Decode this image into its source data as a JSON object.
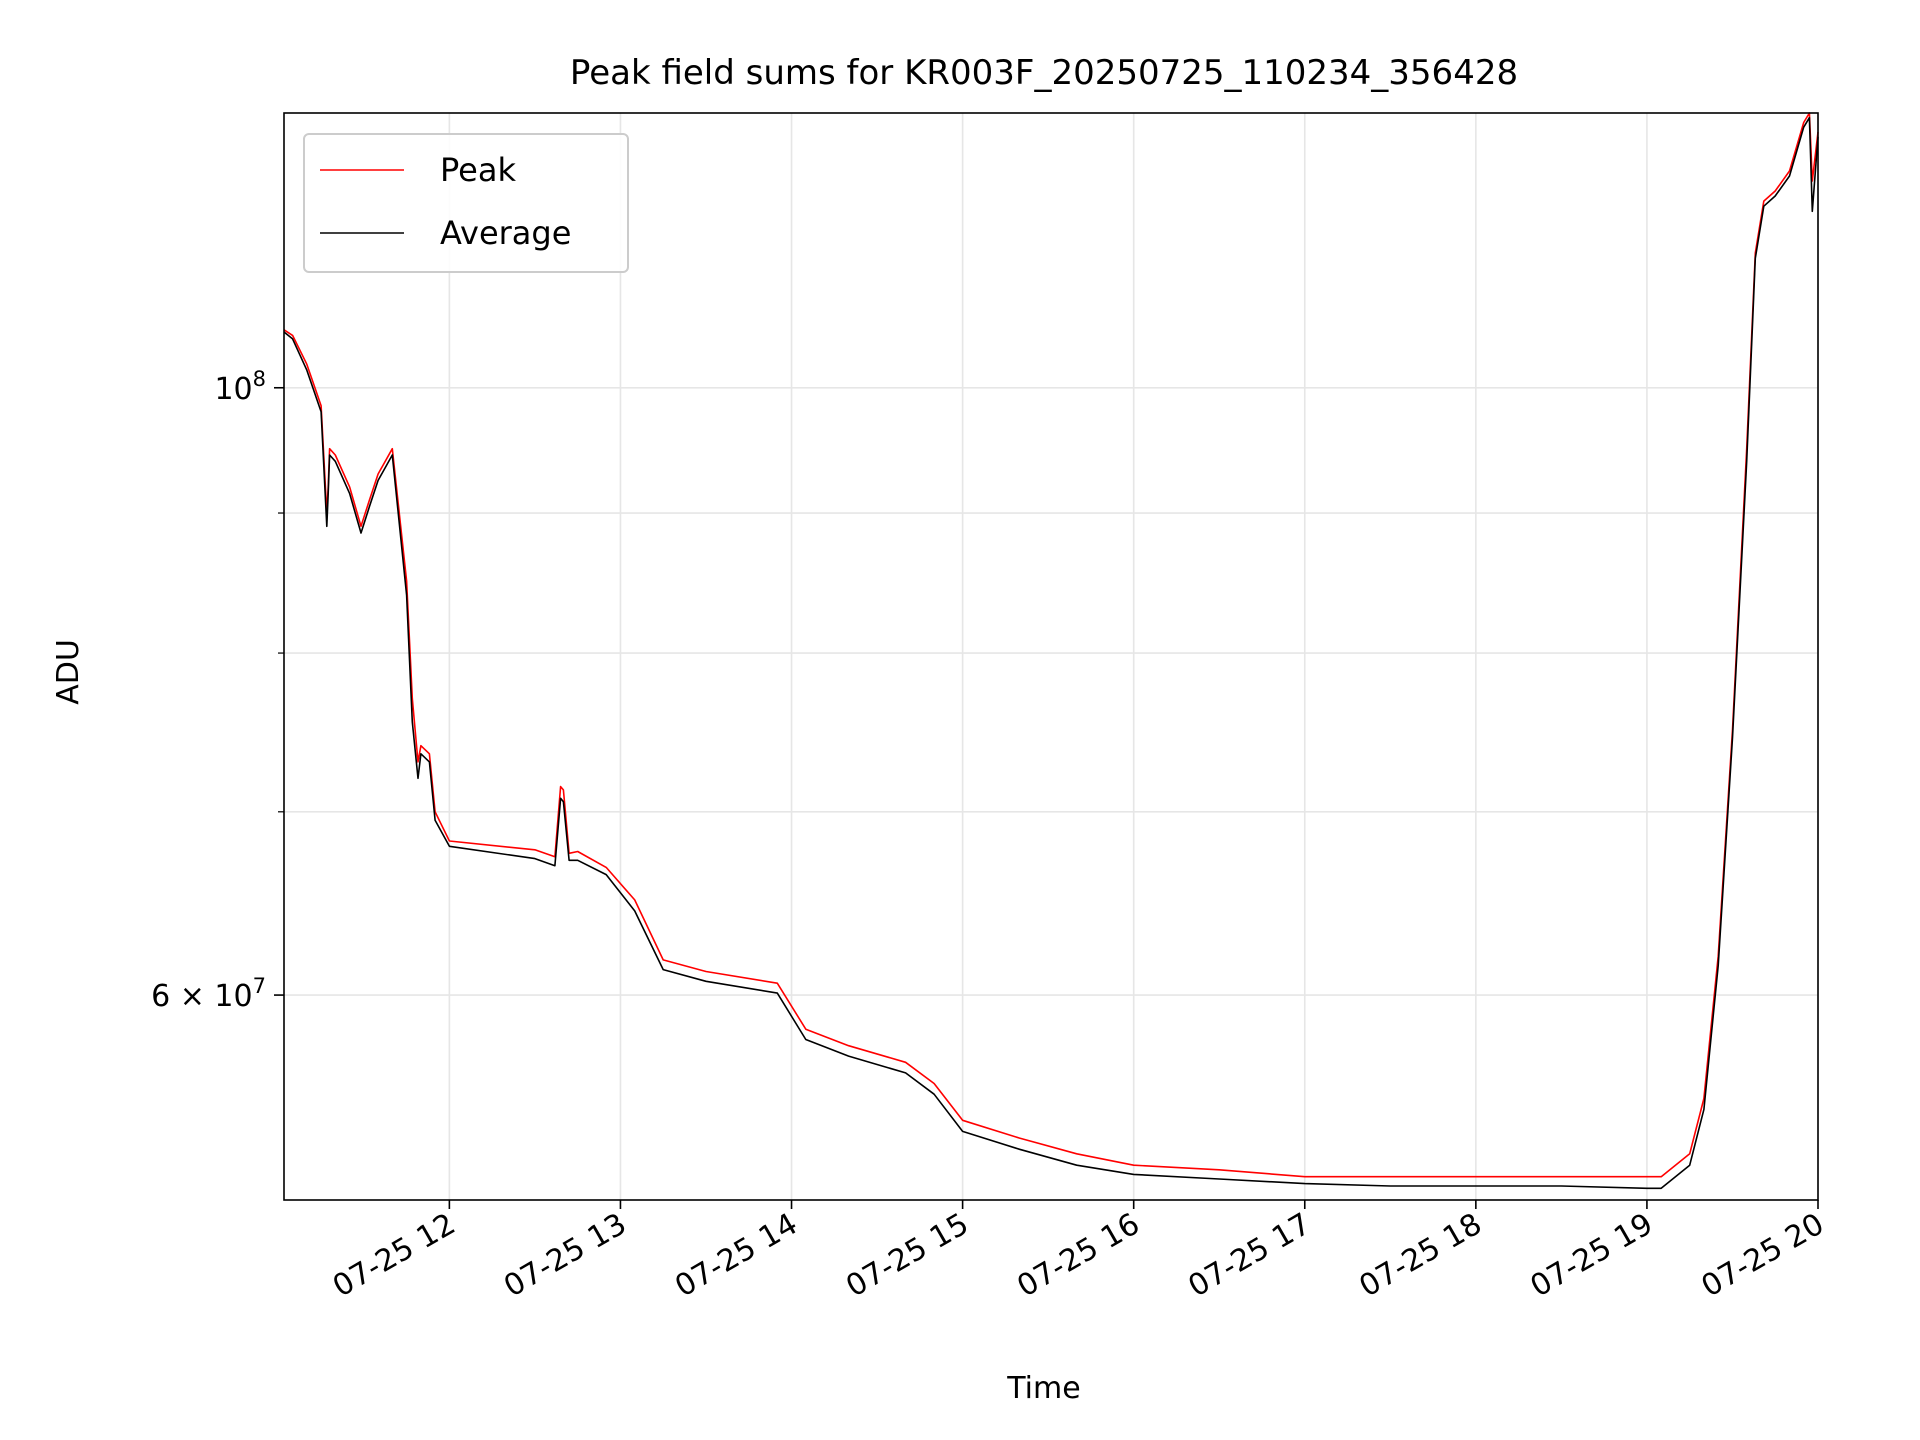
{
  "chart_data": {
    "type": "line",
    "title": "Peak field sums for KR003F_20250725_110234_356428",
    "xlabel": "Time",
    "ylabel": "ADU",
    "xlim": [
      "2025-07-25 11:02",
      "2025-07-25 20:00"
    ],
    "ylim": [
      50500000,
      126000000
    ],
    "yscale": "log",
    "grid": true,
    "legend": "top-left",
    "x_ticks": [
      "07-25 12",
      "07-25 13",
      "07-25 14",
      "07-25 15",
      "07-25 16",
      "07-25 17",
      "07-25 18",
      "07-25 19",
      "07-25 20"
    ],
    "y_major_ticks": [
      {
        "value": 100000000,
        "base": "10",
        "exp": "8",
        "coef": ""
      },
      {
        "value": 60000000,
        "base": "10",
        "exp": "7",
        "coef": "6"
      }
    ],
    "y_minor_ticks": [
      70000000,
      80000000,
      90000000
    ],
    "series": [
      {
        "name": "Peak",
        "color": "#ff0000",
        "x": [
          "2025-07-25 11:02",
          "2025-07-25 11:05",
          "2025-07-25 11:10",
          "2025-07-25 11:15",
          "2025-07-25 11:17",
          "2025-07-25 11:17:30",
          "2025-07-25 11:18",
          "2025-07-25 11:20",
          "2025-07-25 11:25",
          "2025-07-25 11:29",
          "2025-07-25 11:32",
          "2025-07-25 11:35",
          "2025-07-25 11:40",
          "2025-07-25 11:45",
          "2025-07-25 11:47",
          "2025-07-25 11:49",
          "2025-07-25 11:50",
          "2025-07-25 11:53",
          "2025-07-25 11:55",
          "2025-07-25 12:00",
          "2025-07-25 12:30",
          "2025-07-25 12:37",
          "2025-07-25 12:39",
          "2025-07-25 12:40",
          "2025-07-25 12:42",
          "2025-07-25 12:45",
          "2025-07-25 12:55",
          "2025-07-25 13:05",
          "2025-07-25 13:15",
          "2025-07-25 13:30",
          "2025-07-25 13:55",
          "2025-07-25 14:05",
          "2025-07-25 14:20",
          "2025-07-25 14:40",
          "2025-07-25 14:50",
          "2025-07-25 15:00",
          "2025-07-25 15:20",
          "2025-07-25 15:40",
          "2025-07-25 16:00",
          "2025-07-25 16:30",
          "2025-07-25 17:00",
          "2025-07-25 17:30",
          "2025-07-25 18:00",
          "2025-07-25 18:30",
          "2025-07-25 19:00",
          "2025-07-25 19:05",
          "2025-07-25 19:15",
          "2025-07-25 19:20",
          "2025-07-25 19:25",
          "2025-07-25 19:30",
          "2025-07-25 19:35",
          "2025-07-25 19:38",
          "2025-07-25 19:41",
          "2025-07-25 19:45",
          "2025-07-25 19:50",
          "2025-07-25 19:55",
          "2025-07-25 19:57",
          "2025-07-25 19:58",
          "2025-07-25 20:00"
        ],
        "values": [
          105000000,
          104500000,
          102000000,
          98500000,
          90000000,
          92000000,
          95000000,
          94500000,
          92000000,
          89000000,
          91000000,
          93000000,
          95000000,
          85000000,
          77000000,
          73000000,
          74000000,
          73500000,
          70000000,
          68300000,
          67800000,
          67400000,
          71500000,
          71300000,
          67600000,
          67700000,
          66800000,
          65000000,
          61800000,
          61200000,
          60600000,
          58300000,
          57500000,
          56700000,
          55700000,
          54000000,
          53200000,
          52500000,
          52000000,
          51800000,
          51500000,
          51500000,
          51500000,
          51500000,
          51500000,
          51500000,
          52500000,
          55000000,
          62000000,
          75000000,
          95000000,
          112000000,
          117000000,
          118000000,
          120000000,
          125000000,
          126000000,
          119000000,
          124000000
        ]
      },
      {
        "name": "Average",
        "color": "#000000",
        "x": [
          "2025-07-25 11:02",
          "2025-07-25 11:05",
          "2025-07-25 11:10",
          "2025-07-25 11:15",
          "2025-07-25 11:17",
          "2025-07-25 11:17:30",
          "2025-07-25 11:18",
          "2025-07-25 11:20",
          "2025-07-25 11:25",
          "2025-07-25 11:29",
          "2025-07-25 11:32",
          "2025-07-25 11:35",
          "2025-07-25 11:40",
          "2025-07-25 11:45",
          "2025-07-25 11:47",
          "2025-07-25 11:49",
          "2025-07-25 11:50",
          "2025-07-25 11:53",
          "2025-07-25 11:55",
          "2025-07-25 12:00",
          "2025-07-25 12:30",
          "2025-07-25 12:37",
          "2025-07-25 12:39",
          "2025-07-25 12:40",
          "2025-07-25 12:42",
          "2025-07-25 12:45",
          "2025-07-25 12:55",
          "2025-07-25 13:05",
          "2025-07-25 13:15",
          "2025-07-25 13:30",
          "2025-07-25 13:55",
          "2025-07-25 14:05",
          "2025-07-25 14:20",
          "2025-07-25 14:40",
          "2025-07-25 14:50",
          "2025-07-25 15:00",
          "2025-07-25 15:20",
          "2025-07-25 15:40",
          "2025-07-25 16:00",
          "2025-07-25 16:30",
          "2025-07-25 17:00",
          "2025-07-25 17:30",
          "2025-07-25 18:00",
          "2025-07-25 18:30",
          "2025-07-25 19:00",
          "2025-07-25 19:05",
          "2025-07-25 19:15",
          "2025-07-25 19:20",
          "2025-07-25 19:25",
          "2025-07-25 19:30",
          "2025-07-25 19:35",
          "2025-07-25 19:38",
          "2025-07-25 19:41",
          "2025-07-25 19:45",
          "2025-07-25 19:50",
          "2025-07-25 19:55",
          "2025-07-25 19:57",
          "2025-07-25 19:58",
          "2025-07-25 20:00"
        ],
        "values": [
          104800000,
          104200000,
          101500000,
          98000000,
          89000000,
          91500000,
          94500000,
          94000000,
          91500000,
          88500000,
          90500000,
          92500000,
          94500000,
          84000000,
          75500000,
          72000000,
          73500000,
          73000000,
          69500000,
          68000000,
          67300000,
          66900000,
          70800000,
          70600000,
          67200000,
          67200000,
          66400000,
          64400000,
          61300000,
          60700000,
          60100000,
          57800000,
          57000000,
          56200000,
          55200000,
          53500000,
          52700000,
          52000000,
          51600000,
          51400000,
          51200000,
          51100000,
          51100000,
          51100000,
          51000000,
          51000000,
          52000000,
          54500000,
          61500000,
          74500000,
          94000000,
          111500000,
          116500000,
          117500000,
          119500000,
          124500000,
          125500000,
          116000000,
          123500000
        ]
      }
    ]
  }
}
